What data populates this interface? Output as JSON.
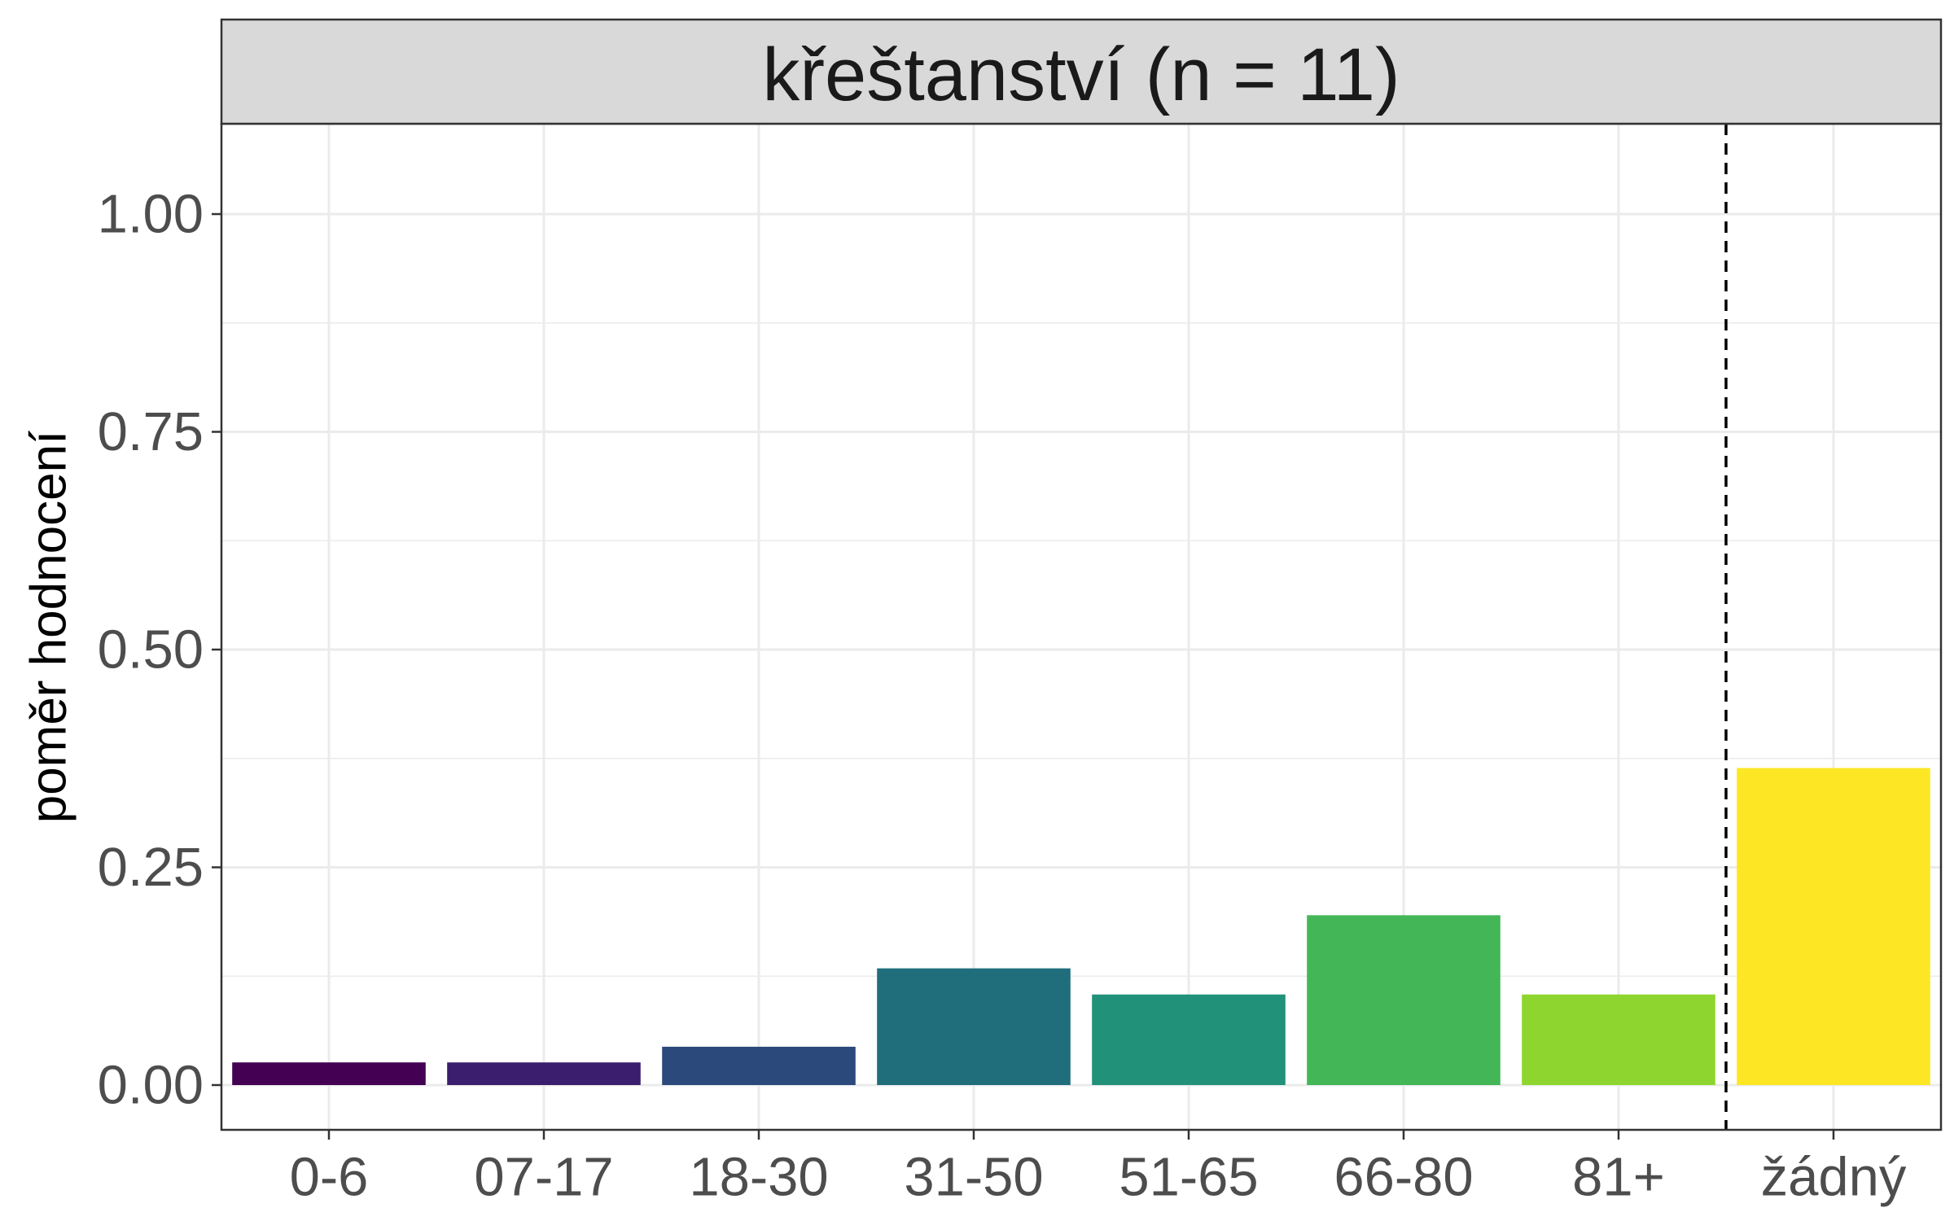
{
  "chart_data": {
    "type": "bar",
    "title": "křeštanství (n = 11)",
    "xlabel": "",
    "ylabel": "poměr hodnocení",
    "categories": [
      "0-6",
      "07-17",
      "18-30",
      "31-50",
      "51-65",
      "66-80",
      "81+",
      "žádný"
    ],
    "values": [
      0.026,
      0.026,
      0.044,
      0.134,
      0.104,
      0.195,
      0.104,
      0.364
    ],
    "colors": [
      "#440154",
      "#3b1f6e",
      "#2b4a7b",
      "#206e7c",
      "#21917a",
      "#43b757",
      "#8ed62f",
      "#fde725"
    ],
    "ylim": [
      0,
      1.1
    ],
    "yticks": [
      "0.00",
      "0.25",
      "0.50",
      "0.75",
      "1.00"
    ],
    "ytick_values": [
      0,
      0.25,
      0.5,
      0.75,
      1.0
    ],
    "reference_line": {
      "style": "dashed",
      "between_categories": [
        "81+",
        "žádný"
      ]
    },
    "grid": true,
    "legend": "none",
    "theme": {
      "panel_background": "#ffffff",
      "strip_background": "#d9d9d9",
      "grid_color": "#ebebeb"
    }
  }
}
